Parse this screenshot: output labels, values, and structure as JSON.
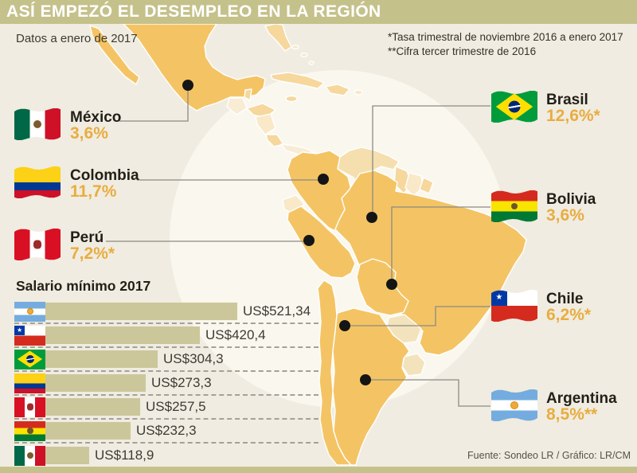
{
  "header": {
    "title": "ASÍ EMPEZÓ EL DESEMPLEO EN LA REGIÓN"
  },
  "subtitle": "Datos a enero de 2017",
  "notes": [
    "*Tasa trimestral de noviembre 2016 a enero 2017",
    "**Cifra tercer trimestre de 2016"
  ],
  "countries": [
    {
      "name": "México",
      "rate": "3,6%"
    },
    {
      "name": "Colombia",
      "rate": "11,7%"
    },
    {
      "name": "Perú",
      "rate": "7,2%*"
    },
    {
      "name": "Brasil",
      "rate": "12,6%*"
    },
    {
      "name": "Bolivia",
      "rate": "3,6%"
    },
    {
      "name": "Chile",
      "rate": "6,2%*"
    },
    {
      "name": "Argentina",
      "rate": "8,5%**"
    }
  ],
  "chart_data": [
    {
      "type": "bar",
      "orientation": "horizontal",
      "title": "Salario mínimo 2017",
      "categories": [
        "Argentina",
        "Chile",
        "Brasil",
        "Colombia",
        "Perú",
        "Bolivia",
        "México"
      ],
      "values": [
        521.34,
        420.4,
        304.3,
        273.3,
        257.5,
        232.3,
        118.9
      ],
      "labels": [
        "US$521,34",
        "US$420,4",
        "US$304,3",
        "US$273,3",
        "US$257,5",
        "US$232,3",
        "US$118,9"
      ],
      "xlabel": "US$",
      "ylabel": "",
      "xlim": [
        0,
        560
      ],
      "grid": false,
      "legend": false
    },
    {
      "type": "table",
      "categories": [
        "México",
        "Colombia",
        "Perú",
        "Brasil",
        "Bolivia",
        "Chile",
        "Argentina"
      ],
      "values": [
        3.6,
        11.7,
        7.2,
        12.6,
        3.6,
        6.2,
        8.5
      ],
      "labels": [
        "3,6%",
        "11,7%",
        "7,2%*",
        "12,6%*",
        "3,6%",
        "6,2%*",
        "8,5%**"
      ]
    }
  ],
  "footer": {
    "source": "Fuente: Sondeo LR / Gráfico: LR/CM"
  },
  "colors": {
    "bg": "#f0ece1",
    "olive": "#c5c18b",
    "amber": "#e8ad40",
    "bar": "#cbc79b",
    "halo": "#faf7ee",
    "orange": "#f4c464",
    "light1": "#f6d79c",
    "light2": "#f6dfae",
    "light3": "#f9e9c8",
    "light4": "#f8ecd4",
    "light5": "#f3e3bd",
    "line": "#8b8a84",
    "dot": "#151515"
  }
}
